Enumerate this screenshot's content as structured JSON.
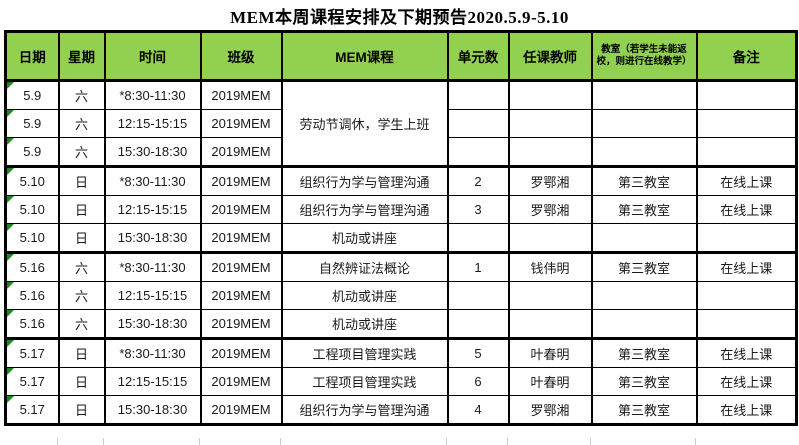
{
  "title": "MEM本周课程安排及下期预告2020.5.9-5.10",
  "colors": {
    "header_bg": "#92D050",
    "flag_triangle": "#1E8A1E",
    "table_border": "#000000",
    "next_row_gridline": "#CCCCCC"
  },
  "table": {
    "headers": [
      "日期",
      "星期",
      "时间",
      "班级",
      "MEM课程",
      "单元数",
      "任课教师",
      "教室（若学生未能返校，则进行在线教学）",
      "备注"
    ],
    "rows": [
      {
        "date": "5.9",
        "week": "六",
        "time": "*8:30-11:30",
        "cls": "2019MEM",
        "course": "劳动节调休，学生上班",
        "course_rowspan": 3,
        "units": "",
        "teacher": "",
        "room": "",
        "note": ""
      },
      {
        "date": "5.9",
        "week": "六",
        "time": "12:15-15:15",
        "cls": "2019MEM",
        "course": null,
        "units": "",
        "teacher": "",
        "room": "",
        "note": ""
      },
      {
        "date": "5.9",
        "week": "六",
        "time": "15:30-18:30",
        "cls": "2019MEM",
        "course": null,
        "units": "",
        "teacher": "",
        "room": "",
        "note": ""
      },
      {
        "date": "5.10",
        "week": "日",
        "time": "*8:30-11:30",
        "cls": "2019MEM",
        "course": "组织行为学与管理沟通",
        "units": "2",
        "teacher": "罗鄂湘",
        "room": "第三教室",
        "note": "在线上课"
      },
      {
        "date": "5.10",
        "week": "日",
        "time": "12:15-15:15",
        "cls": "2019MEM",
        "course": "组织行为学与管理沟通",
        "units": "3",
        "teacher": "罗鄂湘",
        "room": "第三教室",
        "note": "在线上课"
      },
      {
        "date": "5.10",
        "week": "日",
        "time": "15:30-18:30",
        "cls": "2019MEM",
        "course": "机动或讲座",
        "units": "",
        "teacher": "",
        "room": "",
        "note": ""
      },
      {
        "date": "5.16",
        "week": "六",
        "time": "*8:30-11:30",
        "cls": "2019MEM",
        "course": "自然辨证法概论",
        "units": "1",
        "teacher": "钱伟明",
        "room": "第三教室",
        "note": "在线上课"
      },
      {
        "date": "5.16",
        "week": "六",
        "time": "12:15-15:15",
        "cls": "2019MEM",
        "course": "机动或讲座",
        "units": "",
        "teacher": "",
        "room": "",
        "note": ""
      },
      {
        "date": "5.16",
        "week": "六",
        "time": "15:30-18:30",
        "cls": "2019MEM",
        "course": "机动或讲座",
        "units": "",
        "teacher": "",
        "room": "",
        "note": ""
      },
      {
        "date": "5.17",
        "week": "日",
        "time": "*8:30-11:30",
        "cls": "2019MEM",
        "course": "工程项目管理实践",
        "units": "5",
        "teacher": "叶春明",
        "room": "第三教室",
        "note": "在线上课"
      },
      {
        "date": "5.17",
        "week": "日",
        "time": "12:15-15:15",
        "cls": "2019MEM",
        "course": "工程项目管理实践",
        "units": "6",
        "teacher": "叶春明",
        "room": "第三教室",
        "note": "在线上课"
      },
      {
        "date": "5.17",
        "week": "日",
        "time": "15:30-18:30",
        "cls": "2019MEM",
        "course": "组织行为学与管理沟通",
        "units": "4",
        "teacher": "罗鄂湘",
        "room": "第三教室",
        "note": "在线上课"
      }
    ]
  }
}
